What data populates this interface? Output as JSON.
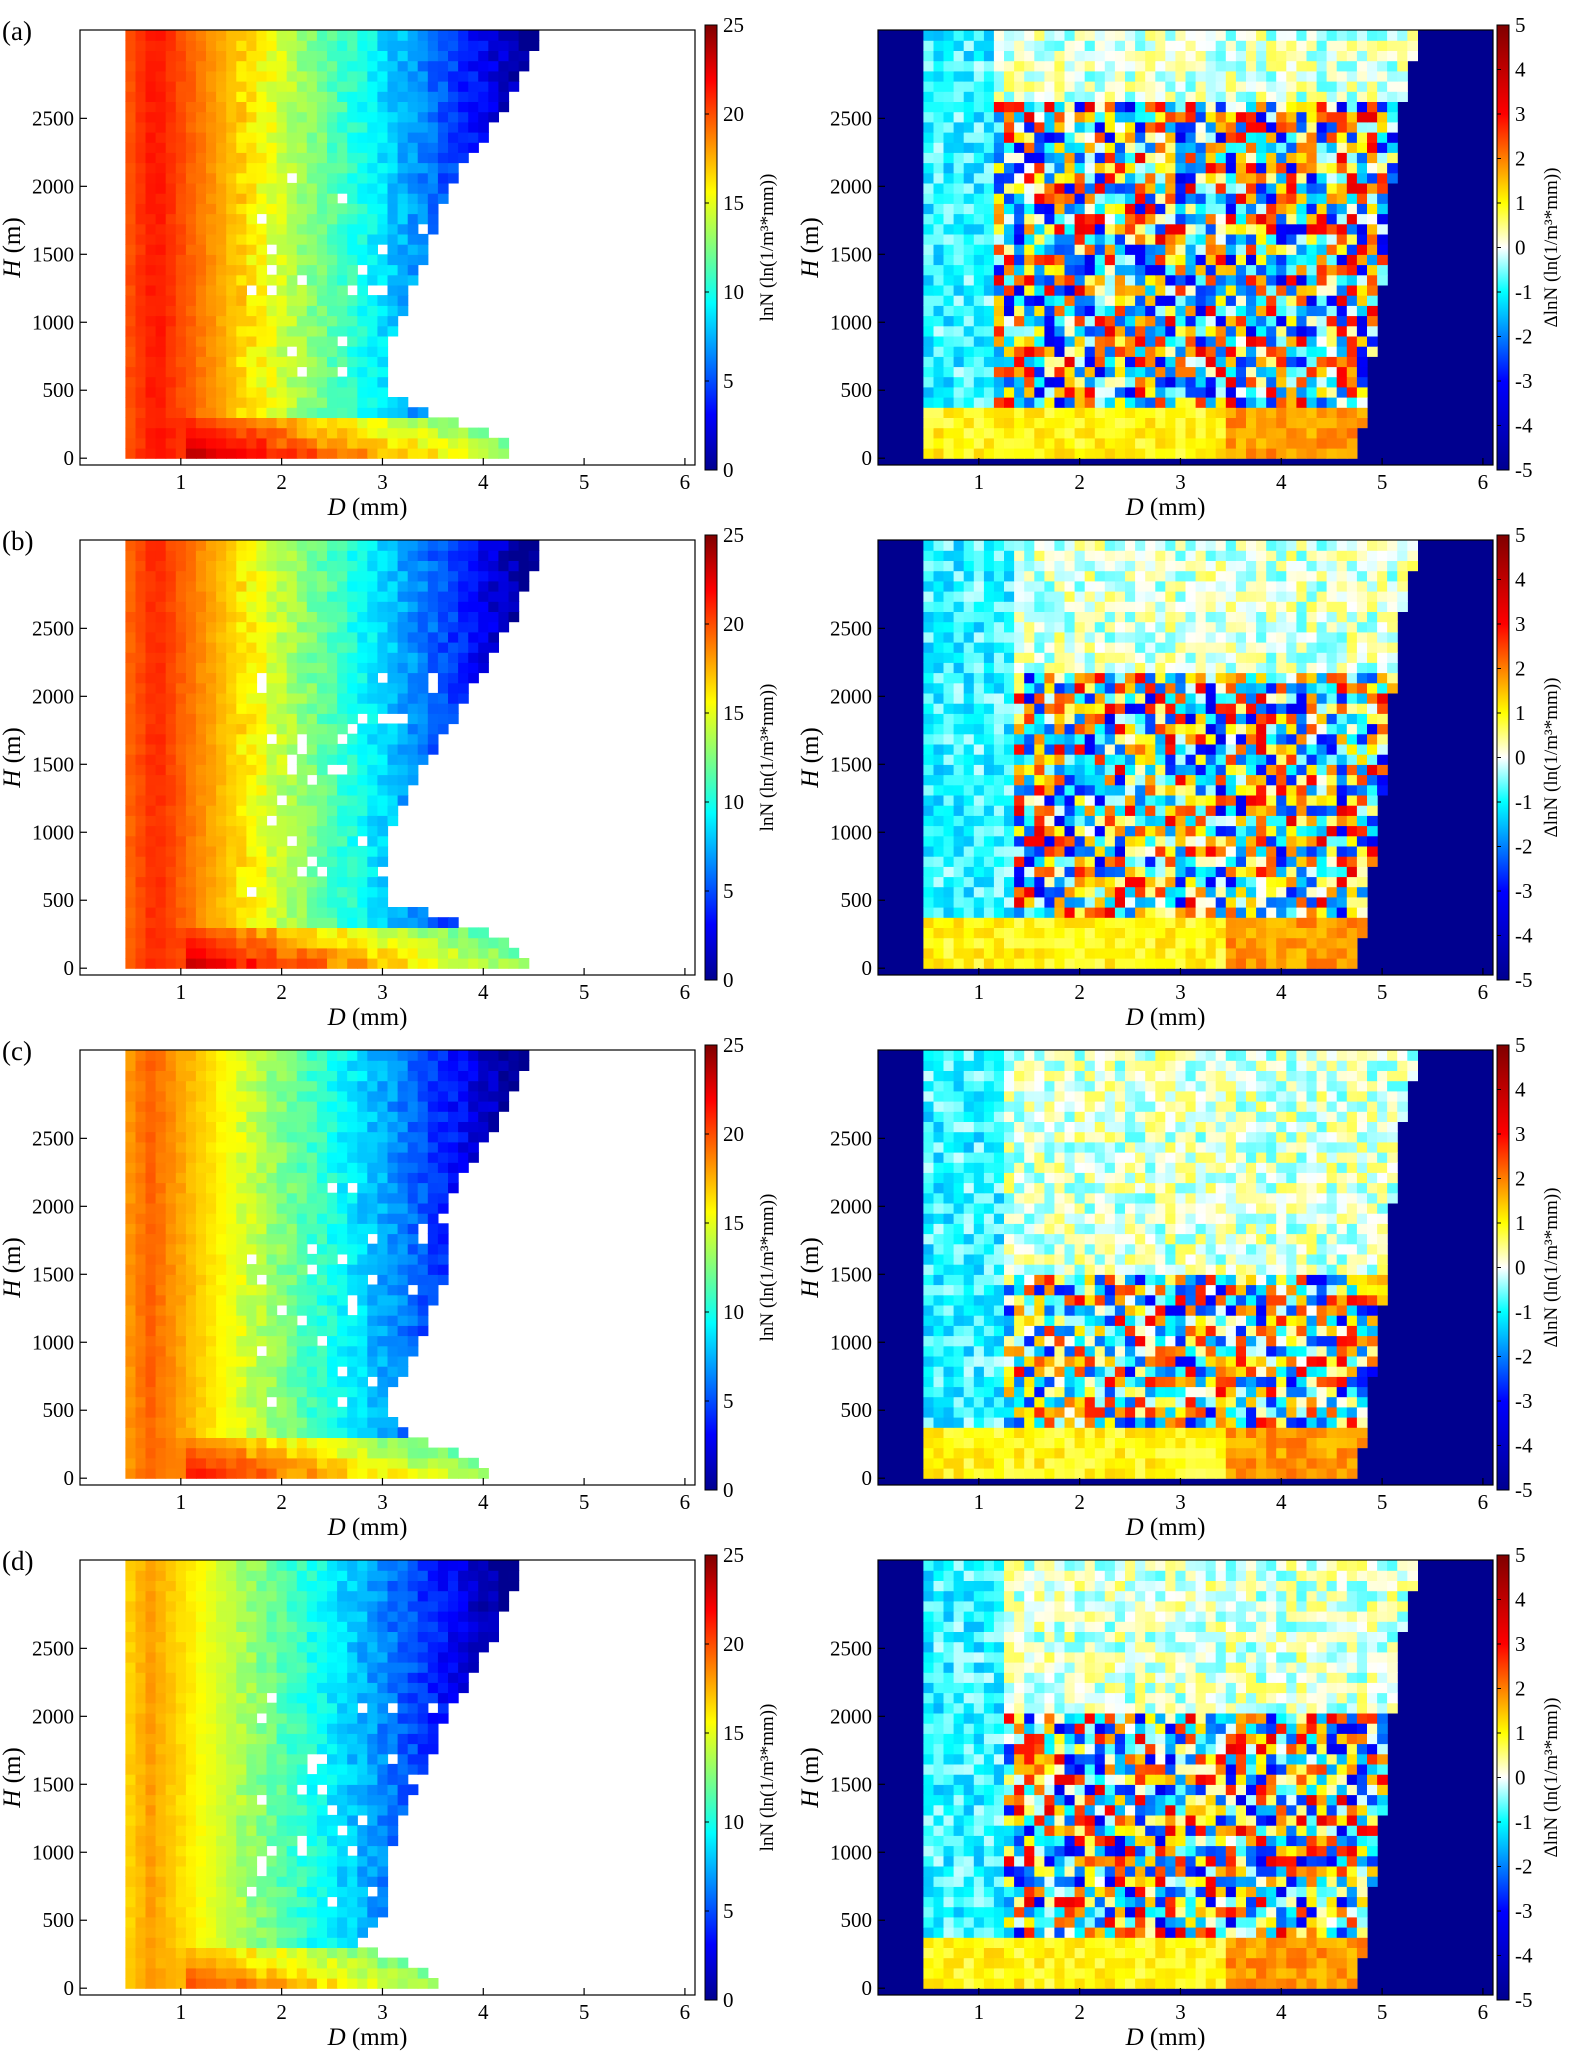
{
  "figure": {
    "panel_labels": [
      "(a)",
      "(b)",
      "(c)",
      "(d)"
    ],
    "x_axis_label": "D (mm)",
    "y_axis_label": "H (m)",
    "left_colorbar_label": "lnN (ln(1/m³*mm))",
    "right_colorbar_label": "ΔlnN (ln(1/m³*mm))"
  },
  "chart_data": [
    {
      "panel": "(a)",
      "side": "left",
      "type": "heatmap",
      "xlabel": "D (mm)",
      "ylabel": "H (m)",
      "x_ticks": [
        1,
        2,
        3,
        4,
        5,
        6
      ],
      "y_ticks": [
        0,
        500,
        1000,
        1500,
        2000,
        2500
      ],
      "xlim": [
        0,
        6.1
      ],
      "ylim": [
        -50,
        3150
      ],
      "colorbar": {
        "label": "lnN (ln(1/m³*mm))",
        "ticks": [
          0,
          5,
          10,
          15,
          20,
          25
        ],
        "range": [
          0,
          25
        ],
        "colormap": "jet"
      },
      "d_min_mm": 0.45,
      "d_max_profile": [
        [
          0,
          4.25
        ],
        [
          150,
          4.15
        ],
        [
          300,
          3.55
        ],
        [
          500,
          2.95
        ],
        [
          1000,
          3.1
        ],
        [
          1500,
          3.4
        ],
        [
          2000,
          3.6
        ],
        [
          2500,
          4.1
        ],
        [
          3100,
          4.55
        ]
      ],
      "peak_d_mm": 0.75,
      "peak_value": 21.5,
      "decay_per_mm": 5.7
    },
    {
      "panel": "(a)",
      "side": "right",
      "type": "heatmap",
      "xlabel": "D (mm)",
      "ylabel": "H (m)",
      "x_ticks": [
        1,
        2,
        3,
        4,
        5,
        6
      ],
      "y_ticks": [
        0,
        500,
        1000,
        1500,
        2000,
        2500
      ],
      "xlim": [
        0,
        6.1
      ],
      "ylim": [
        -50,
        3150
      ],
      "colorbar": {
        "label": "ΔlnN (ln(1/m³*mm))",
        "ticks": [
          -5,
          -4,
          -3,
          -2,
          -1,
          0,
          1,
          2,
          3,
          4,
          5
        ],
        "range": [
          -5,
          5
        ],
        "colormap": "jet"
      },
      "fill_value_outside": -5,
      "d_min_mm": 0.45,
      "d_max_profile": [
        [
          0,
          4.7
        ],
        [
          500,
          4.8
        ],
        [
          1500,
          5.0
        ],
        [
          2500,
          5.1
        ],
        [
          3100,
          5.3
        ]
      ],
      "noise_band": {
        "d_from_mm": 1.2,
        "h_from_m": 400,
        "h_to_m": 2600,
        "amplitude": 2.6
      }
    },
    {
      "panel": "(b)",
      "side": "left",
      "type": "heatmap",
      "xlabel": "D (mm)",
      "ylabel": "H (m)",
      "x_ticks": [
        1,
        2,
        3,
        4,
        5,
        6
      ],
      "y_ticks": [
        0,
        500,
        1000,
        1500,
        2000,
        2500
      ],
      "xlim": [
        0,
        6.1
      ],
      "ylim": [
        -50,
        3150
      ],
      "colorbar": {
        "label": "lnN (ln(1/m³*mm))",
        "ticks": [
          0,
          5,
          10,
          15,
          20,
          25
        ],
        "range": [
          0,
          25
        ],
        "colormap": "jet"
      },
      "d_min_mm": 0.45,
      "d_max_profile": [
        [
          0,
          4.45
        ],
        [
          150,
          4.3
        ],
        [
          300,
          3.9
        ],
        [
          500,
          2.95
        ],
        [
          1000,
          3.0
        ],
        [
          1500,
          3.35
        ],
        [
          2000,
          3.8
        ],
        [
          2500,
          4.2
        ],
        [
          3100,
          4.55
        ]
      ],
      "peak_d_mm": 0.75,
      "peak_value": 21.0,
      "decay_per_mm": 5.6
    },
    {
      "panel": "(b)",
      "side": "right",
      "type": "heatmap",
      "xlabel": "D (mm)",
      "ylabel": "H (m)",
      "x_ticks": [
        1,
        2,
        3,
        4,
        5,
        6
      ],
      "y_ticks": [
        0,
        500,
        1000,
        1500,
        2000,
        2500
      ],
      "xlim": [
        0,
        6.1
      ],
      "ylim": [
        -50,
        3150
      ],
      "colorbar": {
        "label": "ΔlnN (ln(1/m³*mm))",
        "ticks": [
          -5,
          -4,
          -3,
          -2,
          -1,
          0,
          1,
          2,
          3,
          4,
          5
        ],
        "range": [
          -5,
          5
        ],
        "colormap": "jet"
      },
      "fill_value_outside": -5,
      "d_min_mm": 0.45,
      "d_max_profile": [
        [
          0,
          4.7
        ],
        [
          500,
          4.8
        ],
        [
          1500,
          5.0
        ],
        [
          2500,
          5.1
        ],
        [
          3100,
          5.3
        ]
      ],
      "noise_band": {
        "d_from_mm": 1.4,
        "h_from_m": 400,
        "h_to_m": 2200,
        "amplitude": 2.6
      }
    },
    {
      "panel": "(c)",
      "side": "left",
      "type": "heatmap",
      "xlabel": "D (mm)",
      "ylabel": "H (m)",
      "x_ticks": [
        1,
        2,
        3,
        4,
        5,
        6
      ],
      "y_ticks": [
        0,
        500,
        1000,
        1500,
        2000,
        2500
      ],
      "xlim": [
        0,
        6.1
      ],
      "ylim": [
        -50,
        3150
      ],
      "colorbar": {
        "label": "lnN (ln(1/m³*mm))",
        "ticks": [
          0,
          5,
          10,
          15,
          20,
          25
        ],
        "range": [
          0,
          25
        ],
        "colormap": "jet"
      },
      "d_min_mm": 0.45,
      "d_max_profile": [
        [
          0,
          4.05
        ],
        [
          150,
          3.9
        ],
        [
          300,
          3.2
        ],
        [
          500,
          2.95
        ],
        [
          1000,
          3.3
        ],
        [
          1500,
          3.6
        ],
        [
          2000,
          3.55
        ],
        [
          2500,
          4.0
        ],
        [
          3100,
          4.45
        ]
      ],
      "peak_d_mm": 0.7,
      "peak_value": 19.5,
      "decay_per_mm": 5.3
    },
    {
      "panel": "(c)",
      "side": "right",
      "type": "heatmap",
      "xlabel": "D (mm)",
      "ylabel": "H (m)",
      "x_ticks": [
        1,
        2,
        3,
        4,
        5,
        6
      ],
      "y_ticks": [
        0,
        500,
        1000,
        1500,
        2000,
        2500
      ],
      "xlim": [
        0,
        6.1
      ],
      "ylim": [
        -50,
        3150
      ],
      "colorbar": {
        "label": "ΔlnN (ln(1/m³*mm))",
        "ticks": [
          -5,
          -4,
          -3,
          -2,
          -1,
          0,
          1,
          2,
          3,
          4,
          5
        ],
        "range": [
          -5,
          5
        ],
        "colormap": "jet"
      },
      "fill_value_outside": -5,
      "d_min_mm": 0.45,
      "d_max_profile": [
        [
          0,
          4.7
        ],
        [
          500,
          4.8
        ],
        [
          1500,
          5.0
        ],
        [
          2500,
          5.1
        ],
        [
          3100,
          5.3
        ]
      ],
      "noise_band": {
        "d_from_mm": 1.3,
        "h_from_m": 400,
        "h_to_m": 1500,
        "amplitude": 2.4
      }
    },
    {
      "panel": "(d)",
      "side": "left",
      "type": "heatmap",
      "xlabel": "D (mm)",
      "ylabel": "H (m)",
      "x_ticks": [
        1,
        2,
        3,
        4,
        5,
        6
      ],
      "y_ticks": [
        0,
        500,
        1000,
        1500,
        2000,
        2500
      ],
      "xlim": [
        0,
        6.1
      ],
      "ylim": [
        -50,
        3150
      ],
      "colorbar": {
        "label": "lnN (ln(1/m³*mm))",
        "ticks": [
          0,
          5,
          10,
          15,
          20,
          25
        ],
        "range": [
          0,
          25
        ],
        "colormap": "jet"
      },
      "d_min_mm": 0.45,
      "d_max_profile": [
        [
          0,
          3.6
        ],
        [
          150,
          3.4
        ],
        [
          300,
          2.7
        ],
        [
          500,
          2.95
        ],
        [
          1000,
          3.0
        ],
        [
          1500,
          3.3
        ],
        [
          2000,
          3.6
        ],
        [
          2500,
          4.0
        ],
        [
          3100,
          4.35
        ]
      ],
      "peak_d_mm": 0.7,
      "peak_value": 18.0,
      "decay_per_mm": 5.0
    },
    {
      "panel": "(d)",
      "side": "right",
      "type": "heatmap",
      "xlabel": "D (mm)",
      "ylabel": "H (m)",
      "x_ticks": [
        1,
        2,
        3,
        4,
        5,
        6
      ],
      "y_ticks": [
        0,
        500,
        1000,
        1500,
        2000,
        2500
      ],
      "xlim": [
        0,
        6.1
      ],
      "ylim": [
        -50,
        3150
      ],
      "colorbar": {
        "label": "ΔlnN (ln(1/m³*mm))",
        "ticks": [
          -5,
          -4,
          -3,
          -2,
          -1,
          0,
          1,
          2,
          3,
          4,
          5
        ],
        "range": [
          -5,
          5
        ],
        "colormap": "jet"
      },
      "fill_value_outside": -5,
      "d_min_mm": 0.45,
      "d_max_profile": [
        [
          0,
          4.7
        ],
        [
          500,
          4.8
        ],
        [
          1500,
          5.0
        ],
        [
          2500,
          5.1
        ],
        [
          3100,
          5.3
        ]
      ],
      "noise_band": {
        "d_from_mm": 1.3,
        "h_from_m": 400,
        "h_to_m": 2000,
        "amplitude": 2.6
      }
    }
  ]
}
